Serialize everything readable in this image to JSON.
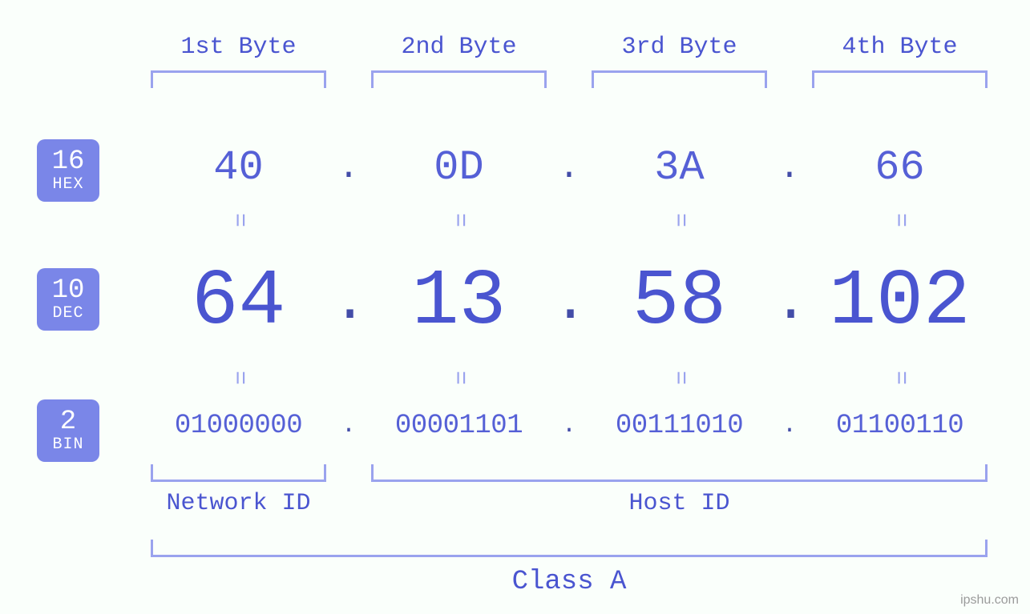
{
  "diagram": {
    "type": "infographic",
    "background_color": "#fafffb",
    "primary_color": "#4a55d0",
    "secondary_color": "#7a86e8",
    "bracket_color": "#9aa3ee",
    "font_family": "Courier New, monospace",
    "watermark": "ipshu.com",
    "byte_headers": [
      "1st Byte",
      "2nd Byte",
      "3rd Byte",
      "4th Byte"
    ],
    "header_fontsize": 30,
    "rows": {
      "hex": {
        "badge_num": "16",
        "badge_label": "HEX",
        "badge_bg": "#7a86e8",
        "fontsize": 52,
        "values": [
          "40",
          "0D",
          "3A",
          "66"
        ]
      },
      "dec": {
        "badge_num": "10",
        "badge_label": "DEC",
        "badge_bg": "#7a86e8",
        "fontsize": 98,
        "values": [
          "64",
          "13",
          "58",
          "102"
        ]
      },
      "bin": {
        "badge_num": "2",
        "badge_label": "BIN",
        "badge_bg": "#7a86e8",
        "fontsize": 34,
        "values": [
          "01000000",
          "00001101",
          "00111010",
          "01100110"
        ]
      }
    },
    "separator": ".",
    "equals_glyph": "=",
    "bottom_labels": {
      "network": "Network ID",
      "host": "Host ID",
      "class": "Class A"
    },
    "bottom_label_fontsize": 30,
    "class_label_fontsize": 34,
    "network_bytes": 1,
    "host_bytes": 3
  }
}
